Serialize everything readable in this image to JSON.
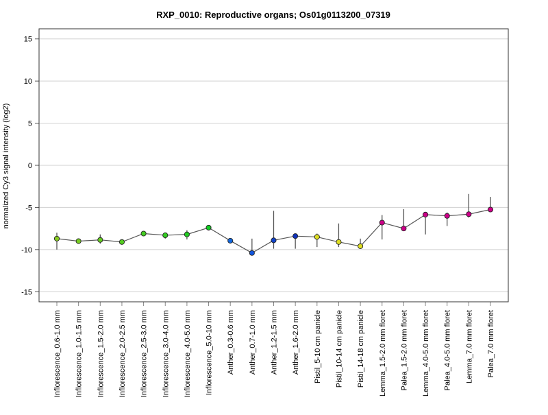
{
  "chart_data": {
    "type": "line",
    "title": "RXP_0010: Reproductive organs; Os01g0113200_07319",
    "xlabel": "",
    "ylabel": "normalized Cy3 signal intensity (log2)",
    "ylim": [
      -16.2,
      16.2
    ],
    "yticks": [
      15,
      10,
      5,
      0,
      -5,
      -10,
      -15
    ],
    "grid": true,
    "categories": [
      "Inflorescence_0.6-1.0 mm",
      "Inflorescence_1.0-1.5 mm",
      "Inflorescence_1.5-2.0 mm",
      "Inflorescence_2.0-2.5 mm",
      "Inflorescence_2.5-3.0 mm",
      "Inflorescence_3.0-4.0 mm",
      "Inflorescence_4.0-5.0 mm",
      "Inflorescence_5.0-10 mm",
      "Anther_0.3-0.6 mm",
      "Anther_0.7-1.0 mm",
      "Anther_1.2-1.5 mm",
      "Anther_1.6-2.0 mm",
      "Pistil_5-10 cm panicle",
      "Pistil_10-14 cm panicle",
      "Pistil_14-18 cm panicle",
      "Lemma_1.5-2.0 mm floret",
      "Palea_1.5-2.0 mm floret",
      "Lemma_4.0-5.0 mm floret",
      "Palea_4.0-5.0 mm floret",
      "Lemma_7.0 mm floret",
      "Palea_7.0 mm floret"
    ],
    "series": [
      {
        "name": "Os01g0113200_07319",
        "values": [
          -8.7,
          -9.0,
          -8.85,
          -9.1,
          -8.1,
          -8.3,
          -8.2,
          -7.4,
          -8.95,
          -10.4,
          -8.9,
          -8.4,
          -8.5,
          -9.1,
          -9.6,
          -6.8,
          -7.5,
          -5.85,
          -6.0,
          -5.8,
          -5.25
        ],
        "err_low": [
          -10.0,
          -9.1,
          -9.3,
          -9.2,
          -8.2,
          -8.7,
          -8.8,
          -7.5,
          -9.0,
          -10.4,
          -9.9,
          -9.9,
          -9.7,
          -9.7,
          -9.9,
          -8.8,
          -7.8,
          -8.2,
          -7.2,
          -6.2,
          -5.3
        ],
        "err_high": [
          -8.0,
          -8.9,
          -8.2,
          -9.0,
          -8.0,
          -8.0,
          -7.7,
          -7.3,
          -8.9,
          -8.7,
          -5.4,
          -8.4,
          -8.1,
          -6.9,
          -8.7,
          -5.9,
          -5.2,
          -5.85,
          -5.6,
          -3.4,
          -3.75
        ],
        "point_colors": [
          "#88cc22",
          "#77cc22",
          "#66cc22",
          "#55cc22",
          "#44cc22",
          "#33cc22",
          "#22cc22",
          "#11cc22",
          "#1166dd",
          "#1155dd",
          "#1144cc",
          "#1133bb",
          "#dddd22",
          "#dddd22",
          "#dddd22",
          "#cc0088",
          "#cc0088",
          "#cc0088",
          "#cc0088",
          "#cc0088",
          "#cc0088"
        ]
      }
    ]
  }
}
